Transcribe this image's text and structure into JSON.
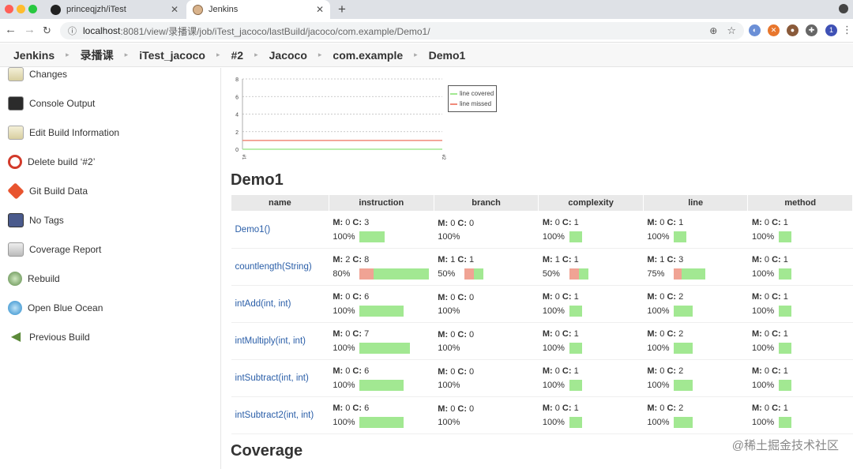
{
  "browser": {
    "tabs": [
      {
        "title": "princeqjzh/iTest"
      },
      {
        "title": "Jenkins"
      }
    ],
    "url_host": "localhost",
    "url_path": ":8081/view/录播课/job/iTest_jacoco/lastBuild/jacoco/com.example/Demo1/",
    "profile_initial": "1"
  },
  "breadcrumbs": [
    "Jenkins",
    "录播课",
    "iTest_jacoco",
    "#2",
    "Jacoco",
    "com.example",
    "Demo1"
  ],
  "sidebar": {
    "items": [
      {
        "label": "Changes",
        "icon": "notepad-icon"
      },
      {
        "label": "Console Output",
        "icon": "terminal-icon"
      },
      {
        "label": "Edit Build Information",
        "icon": "edit-icon"
      },
      {
        "label": "Delete build ‘#2’",
        "icon": "no-entry-icon"
      },
      {
        "label": "Git Build Data",
        "icon": "git-icon"
      },
      {
        "label": "No Tags",
        "icon": "save-icon"
      },
      {
        "label": "Coverage Report",
        "icon": "report-icon"
      },
      {
        "label": "Rebuild",
        "icon": "rebuild-icon"
      },
      {
        "label": "Open Blue Ocean",
        "icon": "blue-ocean-icon"
      },
      {
        "label": "Previous Build",
        "icon": "arrow-left-icon"
      }
    ]
  },
  "chart_data": {
    "type": "line",
    "title": "",
    "x": [
      "#1",
      "#2"
    ],
    "ylim": [
      0,
      8
    ],
    "yticks": [
      0,
      2,
      4,
      6,
      8
    ],
    "series": [
      {
        "name": "line covered",
        "values": [
          0,
          0
        ],
        "color": "#a2e892"
      },
      {
        "name": "line missed",
        "values": [
          1,
          1
        ],
        "color": "#f08a7a"
      }
    ],
    "legend": "top-right"
  },
  "titles": {
    "class_title": "Demo1",
    "coverage_title": "Coverage"
  },
  "table": {
    "headers": [
      "name",
      "instruction",
      "branch",
      "complexity",
      "line",
      "method"
    ],
    "rows": [
      {
        "name": "Demo1()",
        "cells": [
          {
            "m": "0",
            "c": "3",
            "pct": "100%",
            "frac": 1.0,
            "total": 3
          },
          {
            "m": "0",
            "c": "0",
            "pct": "100%",
            "frac": 1.0,
            "total": 0
          },
          {
            "m": "0",
            "c": "1",
            "pct": "100%",
            "frac": 1.0,
            "total": 1
          },
          {
            "m": "0",
            "c": "1",
            "pct": "100%",
            "frac": 1.0,
            "total": 1
          },
          {
            "m": "0",
            "c": "1",
            "pct": "100%",
            "frac": 1.0,
            "total": 1
          }
        ]
      },
      {
        "name": "countlength(String)",
        "cells": [
          {
            "m": "2",
            "c": "8",
            "pct": "80%",
            "frac": 0.8,
            "total": 10
          },
          {
            "m": "1",
            "c": "1",
            "pct": "50%",
            "frac": 0.5,
            "total": 2
          },
          {
            "m": "1",
            "c": "1",
            "pct": "50%",
            "frac": 0.5,
            "total": 2
          },
          {
            "m": "1",
            "c": "3",
            "pct": "75%",
            "frac": 0.75,
            "total": 4
          },
          {
            "m": "0",
            "c": "1",
            "pct": "100%",
            "frac": 1.0,
            "total": 1
          }
        ]
      },
      {
        "name": "intAdd(int, int)",
        "cells": [
          {
            "m": "0",
            "c": "6",
            "pct": "100%",
            "frac": 1.0,
            "total": 6
          },
          {
            "m": "0",
            "c": "0",
            "pct": "100%",
            "frac": 1.0,
            "total": 0
          },
          {
            "m": "0",
            "c": "1",
            "pct": "100%",
            "frac": 1.0,
            "total": 1
          },
          {
            "m": "0",
            "c": "2",
            "pct": "100%",
            "frac": 1.0,
            "total": 2
          },
          {
            "m": "0",
            "c": "1",
            "pct": "100%",
            "frac": 1.0,
            "total": 1
          }
        ]
      },
      {
        "name": "intMultiply(int, int)",
        "cells": [
          {
            "m": "0",
            "c": "7",
            "pct": "100%",
            "frac": 1.0,
            "total": 7
          },
          {
            "m": "0",
            "c": "0",
            "pct": "100%",
            "frac": 1.0,
            "total": 0
          },
          {
            "m": "0",
            "c": "1",
            "pct": "100%",
            "frac": 1.0,
            "total": 1
          },
          {
            "m": "0",
            "c": "2",
            "pct": "100%",
            "frac": 1.0,
            "total": 2
          },
          {
            "m": "0",
            "c": "1",
            "pct": "100%",
            "frac": 1.0,
            "total": 1
          }
        ]
      },
      {
        "name": "intSubtract(int, int)",
        "cells": [
          {
            "m": "0",
            "c": "6",
            "pct": "100%",
            "frac": 1.0,
            "total": 6
          },
          {
            "m": "0",
            "c": "0",
            "pct": "100%",
            "frac": 1.0,
            "total": 0
          },
          {
            "m": "0",
            "c": "1",
            "pct": "100%",
            "frac": 1.0,
            "total": 1
          },
          {
            "m": "0",
            "c": "2",
            "pct": "100%",
            "frac": 1.0,
            "total": 2
          },
          {
            "m": "0",
            "c": "1",
            "pct": "100%",
            "frac": 1.0,
            "total": 1
          }
        ]
      },
      {
        "name": "intSubtract2(int, int)",
        "cells": [
          {
            "m": "0",
            "c": "6",
            "pct": "100%",
            "frac": 1.0,
            "total": 6
          },
          {
            "m": "0",
            "c": "0",
            "pct": "100%",
            "frac": 1.0,
            "total": 0
          },
          {
            "m": "0",
            "c": "1",
            "pct": "100%",
            "frac": 1.0,
            "total": 1
          },
          {
            "m": "0",
            "c": "2",
            "pct": "100%",
            "frac": 1.0,
            "total": 2
          },
          {
            "m": "0",
            "c": "1",
            "pct": "100%",
            "frac": 1.0,
            "total": 1
          }
        ]
      }
    ]
  },
  "colors": {
    "covered": "#a2e892",
    "missed": "#f0a394",
    "link": "#2a5ea8"
  },
  "watermark": "@稀土掘金技术社区"
}
